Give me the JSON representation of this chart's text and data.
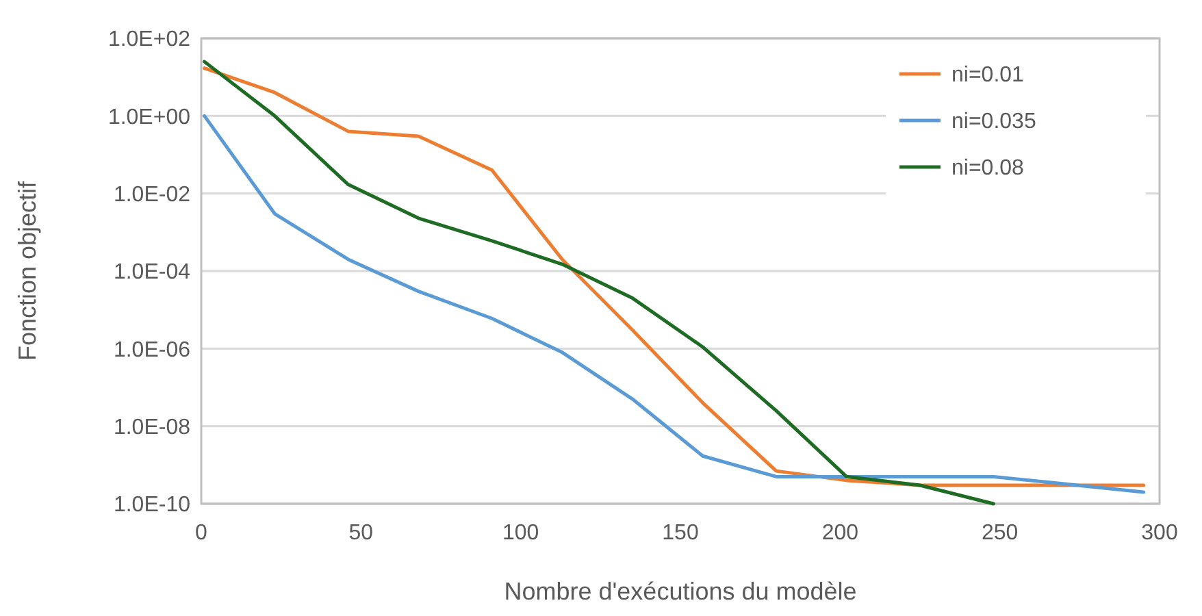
{
  "chart_data": {
    "type": "line",
    "xlabel": "Nombre d'exécutions du modèle",
    "ylabel": "Fonction objectif",
    "x": [
      1,
      23,
      46,
      68,
      91,
      113,
      135,
      157,
      180,
      202,
      225,
      248,
      295
    ],
    "series": [
      {
        "name": "ni=0.01",
        "color": "#ed7d31",
        "values": [
          17,
          4,
          0.4,
          0.3,
          0.04,
          0.0002,
          3e-06,
          4e-08,
          7e-10,
          4e-10,
          3e-10,
          3e-10,
          3e-10
        ]
      },
      {
        "name": "ni=0.035",
        "color": "#5b9bd5",
        "values": [
          1,
          0.003,
          0.0002,
          3e-05,
          6e-06,
          8e-07,
          5e-08,
          1.7e-09,
          5e-10,
          5e-10,
          5e-10,
          5e-10,
          2e-10
        ]
      },
      {
        "name": "ni=0.08",
        "color": "#1e6b24",
        "values": [
          25,
          1,
          0.017,
          0.0023,
          0.0006,
          0.00015,
          2e-05,
          1.1e-06,
          2.5e-08,
          5e-10,
          3e-10,
          1e-10,
          null
        ]
      }
    ],
    "log": true,
    "xlim": [
      0,
      300
    ],
    "xticks": [
      0,
      50,
      100,
      150,
      200,
      250,
      300
    ],
    "ylim": [
      1e-10,
      100
    ],
    "yticks": [
      {
        "value": 100,
        "label": "1.0E+02"
      },
      {
        "value": 1,
        "label": "1.0E+00"
      },
      {
        "value": 0.01,
        "label": "1.0E-02"
      },
      {
        "value": 0.0001,
        "label": "1.0E-04"
      },
      {
        "value": 1e-06,
        "label": "1.0E-06"
      },
      {
        "value": 1e-08,
        "label": "1.0E-08"
      },
      {
        "value": 1e-10,
        "label": "1.0E-10"
      }
    ],
    "grid": "y",
    "legend": "top right",
    "marker": "none",
    "line_style": "solid"
  }
}
